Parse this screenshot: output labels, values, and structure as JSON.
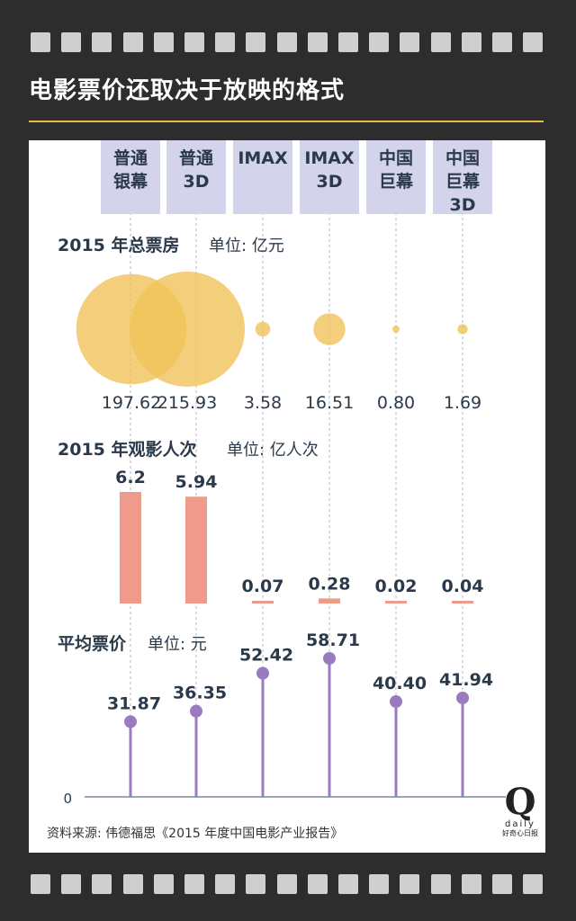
{
  "title": "电影票价还取决于放映的格式",
  "categories": [
    {
      "line1": "普通",
      "line2": "银幕",
      "line3": ""
    },
    {
      "line1": "普通",
      "line2": "3D",
      "line3": ""
    },
    {
      "line1": "IMAX",
      "line2": "",
      "line3": ""
    },
    {
      "line1": "IMAX",
      "line2": "3D",
      "line3": ""
    },
    {
      "line1": "中国",
      "line2": "巨幕",
      "line3": ""
    },
    {
      "line1": "中国",
      "line2": "巨幕",
      "line3": "3D"
    }
  ],
  "sections": {
    "box_office": {
      "title": "2015 年总票房",
      "unit": "单位: 亿元"
    },
    "audience": {
      "title": "2015 年观影人次",
      "unit": "单位:  亿人次"
    },
    "price": {
      "title": "平均票价",
      "unit": "单位:  元",
      "zero_label": "0"
    }
  },
  "source": "资料来源:  伟德福思《2015 年度中国电影产业报告》",
  "logo": {
    "mark": "Q",
    "word": "daily",
    "cn": "好奇心日报"
  },
  "colors": {
    "background": "#2d2d2d",
    "accent_rule": "#e8b84b",
    "category_box": "#d3d3eb",
    "bubble": "#f0c35a",
    "bar": "#ef9a8a",
    "lollipop": "#9b7bbf",
    "text": "#2b3a4a"
  },
  "chart_data": [
    {
      "type": "scatter",
      "title": "2015 年总票房",
      "unit": "单位: 亿元",
      "categories": [
        "普通银幕",
        "普通3D",
        "IMAX",
        "IMAX 3D",
        "中国巨幕",
        "中国巨幕3D"
      ],
      "values": [
        197.62,
        215.93,
        3.58,
        16.51,
        0.8,
        1.69
      ],
      "labels": [
        "197.62",
        "215.93",
        "3.58",
        "16.51",
        "0.80",
        "1.69"
      ]
    },
    {
      "type": "bar",
      "title": "2015 年观影人次",
      "unit": "单位:  亿人次",
      "categories": [
        "普通银幕",
        "普通3D",
        "IMAX",
        "IMAX 3D",
        "中国巨幕",
        "中国巨幕3D"
      ],
      "values": [
        6.2,
        5.94,
        0.07,
        0.28,
        0.02,
        0.04
      ],
      "labels": [
        "6.2",
        "5.94",
        "0.07",
        "0.28",
        "0.02",
        "0.04"
      ]
    },
    {
      "type": "line",
      "title": "平均票价",
      "unit": "单位:  元",
      "categories": [
        "普通银幕",
        "普通3D",
        "IMAX",
        "IMAX 3D",
        "中国巨幕",
        "中国巨幕3D"
      ],
      "values": [
        31.87,
        36.35,
        52.42,
        58.71,
        40.4,
        41.94
      ],
      "labels": [
        "31.87",
        "36.35",
        "52.42",
        "58.71",
        "40.40",
        "41.94"
      ]
    }
  ]
}
